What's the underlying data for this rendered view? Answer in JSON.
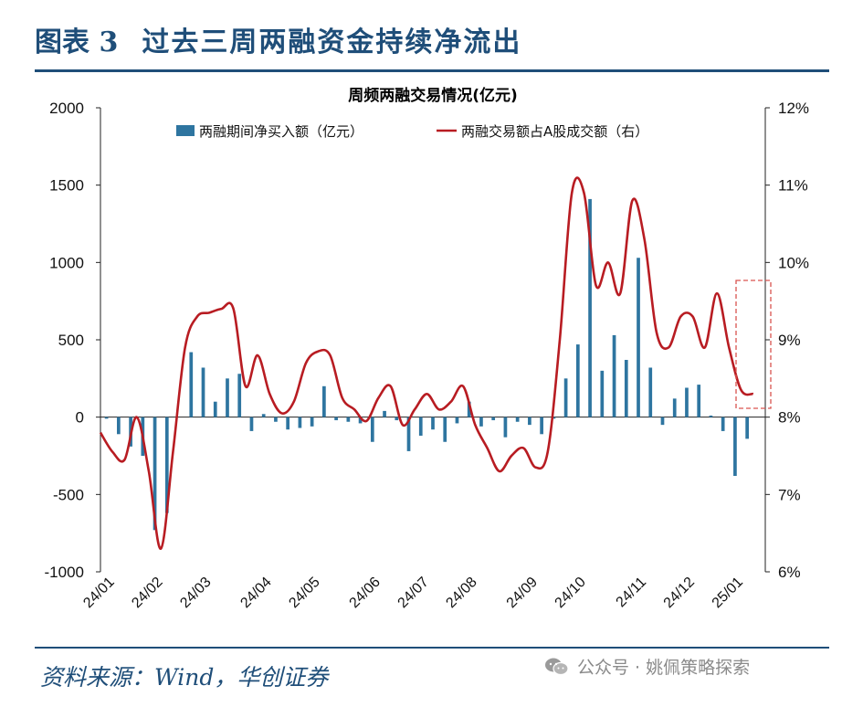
{
  "figure": {
    "number_label": "图表 3",
    "title": "过去三周两融资金持续净流出",
    "source": "资料来源：Wind，华创证券",
    "watermark": "公众号 · 姚佩策略探索",
    "watermark_icon": "wechat-icon"
  },
  "colors": {
    "title": "#1f4e79",
    "bar": "#2e75a0",
    "line": "#b81c22",
    "highlight_box": "#d9534f"
  },
  "chart_data": {
    "type": "bar+line",
    "title": "周频两融交易情况(亿元)",
    "legend": {
      "position": "top",
      "bar_label": "两融期间净买入额（亿元）",
      "line_label": "两融交易额占A股成交额（右）"
    },
    "left_axis": {
      "ylim": [
        -1000,
        2000
      ],
      "ticks": [
        2000,
        1500,
        1000,
        500,
        0,
        -500,
        -1000
      ],
      "tick_labels": [
        "2000",
        "1500",
        "1000",
        "500",
        "0",
        "-500",
        "-1000"
      ]
    },
    "right_axis": {
      "ylim": [
        6,
        12
      ],
      "ticks": [
        12,
        11,
        10,
        9,
        8,
        7,
        6
      ],
      "tick_labels": [
        "12%",
        "11%",
        "10%",
        "9%",
        "8%",
        "7%",
        "6%"
      ]
    },
    "x_ticks": [
      "24/01",
      "24/02",
      "24/03",
      "24/04",
      "24/05",
      "24/06",
      "24/07",
      "24/08",
      "24/09",
      "24/10",
      "24/11",
      "24/12",
      "25/01"
    ],
    "weeks": 55,
    "bar_series": {
      "name": "两融期间净买入额（亿元）",
      "values": [
        -10,
        -110,
        -190,
        -250,
        -730,
        -620,
        0,
        420,
        320,
        100,
        250,
        280,
        -90,
        20,
        -30,
        -80,
        -70,
        -60,
        200,
        -20,
        -30,
        -40,
        -160,
        40,
        -20,
        -220,
        -120,
        -80,
        -160,
        -40,
        100,
        -60,
        -20,
        -130,
        -30,
        -50,
        -110,
        -10,
        250,
        470,
        1410,
        300,
        530,
        370,
        1030,
        320,
        -50,
        120,
        190,
        210,
        10,
        -90,
        -380,
        -140,
        0
      ],
      "y_axis": "left"
    },
    "line_series": {
      "name": "两融交易额占A股成交额（右）",
      "values": [
        7.8,
        7.55,
        7.45,
        8.0,
        7.3,
        6.3,
        7.55,
        8.9,
        9.3,
        9.35,
        9.4,
        9.4,
        8.4,
        8.8,
        8.3,
        8.05,
        8.2,
        8.7,
        8.85,
        8.8,
        8.25,
        8.1,
        7.95,
        8.25,
        8.4,
        7.9,
        8.1,
        8.3,
        8.1,
        8.2,
        8.4,
        7.9,
        7.6,
        7.3,
        7.5,
        7.6,
        7.35,
        7.55,
        9.0,
        10.9,
        10.9,
        9.7,
        10.0,
        9.6,
        10.8,
        10.3,
        9.1,
        8.9,
        9.3,
        9.3,
        8.9,
        9.6,
        8.9,
        8.35,
        8.3
      ],
      "y_axis": "right"
    },
    "annotation": "dashed red box highlighting the last three weeks"
  }
}
